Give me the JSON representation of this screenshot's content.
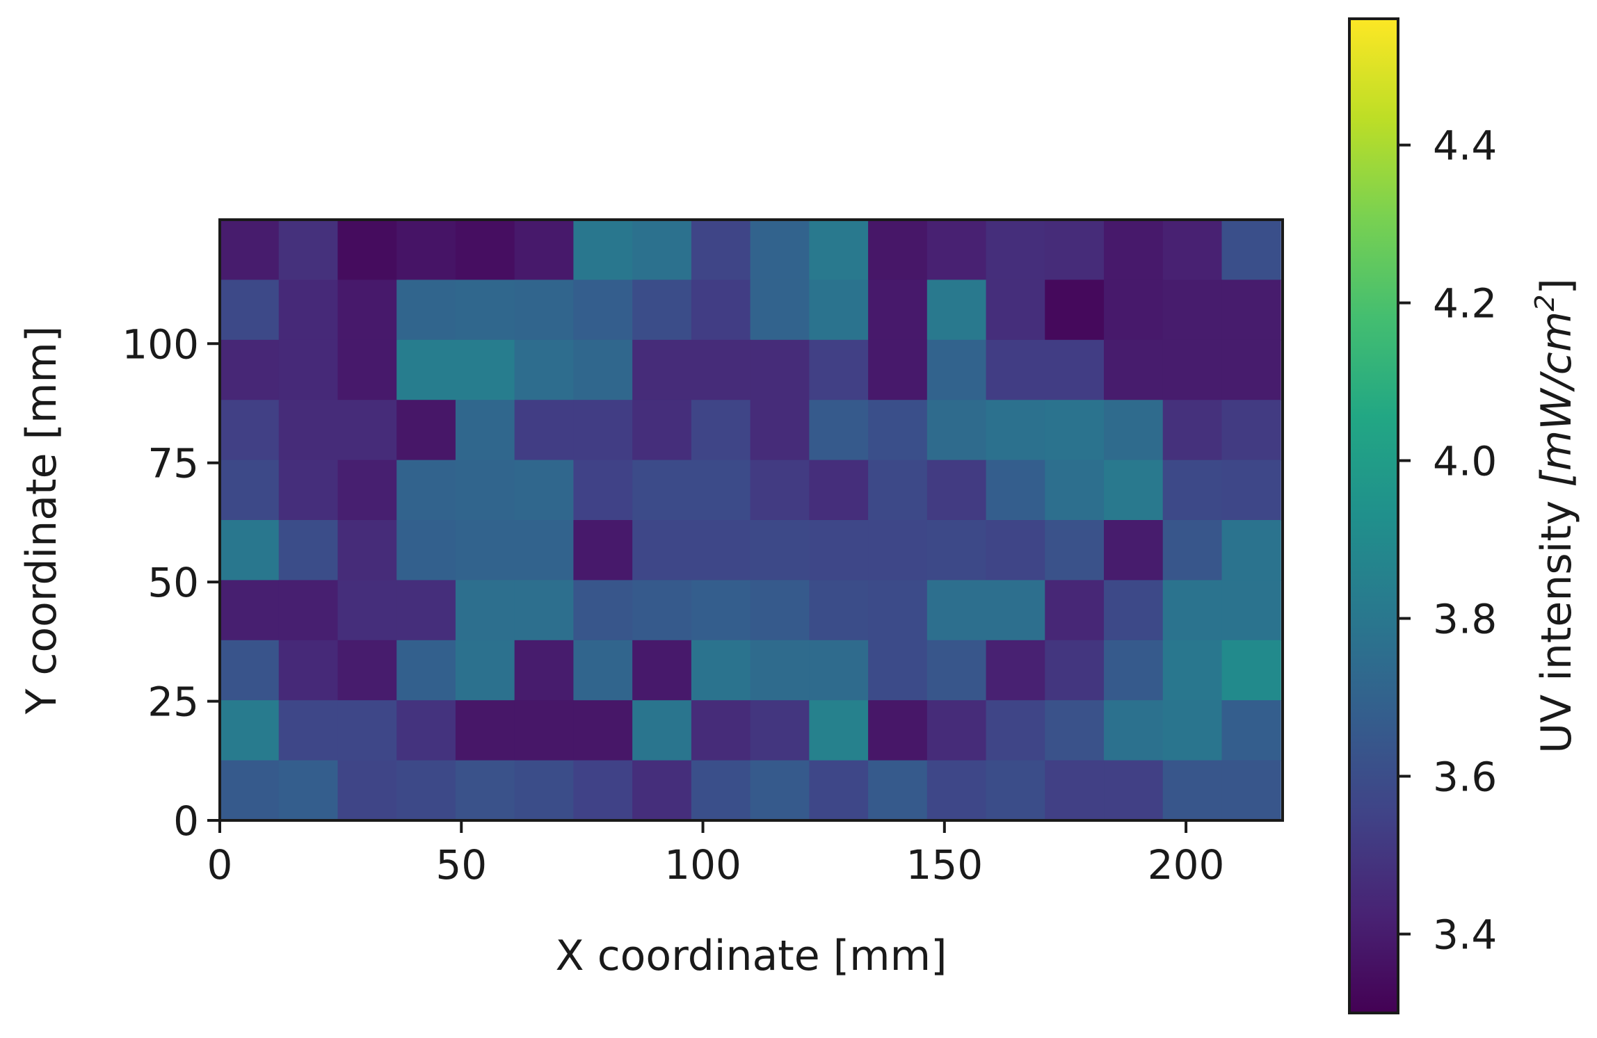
{
  "chart_data": {
    "type": "heatmap",
    "xlabel": "X coordinate [mm]",
    "ylabel": "Y coordinate [mm]",
    "colorbar_label_plain": "UV intensity ",
    "colorbar_label_units": "[mW/cm",
    "colorbar_label_exp": "2",
    "colorbar_label_close": "]",
    "colormap": "viridis",
    "xlim": [
      0,
      220
    ],
    "ylim": [
      0,
      126
    ],
    "xticks": [
      0,
      50,
      100,
      150,
      200
    ],
    "yticks": [
      0,
      25,
      50,
      75,
      100
    ],
    "colorbar_range": [
      3.3,
      4.56
    ],
    "colorbar_ticks": [
      3.4,
      3.6,
      3.8,
      4.0,
      4.2,
      4.4
    ],
    "cell_size_x": 12.2,
    "cell_size_y": 12.6,
    "rows_top_to_bottom": [
      [
        3.4,
        3.48,
        3.34,
        3.37,
        3.35,
        3.39,
        3.8,
        3.77,
        3.56,
        3.7,
        3.81,
        3.38,
        3.42,
        3.47,
        3.46,
        3.39,
        3.42,
        3.61
      ],
      [
        3.58,
        3.45,
        3.39,
        3.71,
        3.72,
        3.71,
        3.68,
        3.6,
        3.53,
        3.7,
        3.78,
        3.39,
        3.81,
        3.47,
        3.33,
        3.39,
        3.4,
        3.4
      ],
      [
        3.44,
        3.45,
        3.39,
        3.83,
        3.83,
        3.75,
        3.72,
        3.46,
        3.46,
        3.46,
        3.54,
        3.39,
        3.7,
        3.53,
        3.53,
        3.4,
        3.4,
        3.4
      ],
      [
        3.54,
        3.46,
        3.46,
        3.38,
        3.72,
        3.53,
        3.53,
        3.47,
        3.56,
        3.46,
        3.66,
        3.61,
        3.74,
        3.77,
        3.78,
        3.74,
        3.48,
        3.52
      ],
      [
        3.58,
        3.47,
        3.41,
        3.7,
        3.71,
        3.72,
        3.55,
        3.59,
        3.59,
        3.52,
        3.47,
        3.58,
        3.52,
        3.68,
        3.76,
        3.81,
        3.58,
        3.57
      ],
      [
        3.8,
        3.6,
        3.46,
        3.69,
        3.7,
        3.7,
        3.39,
        3.57,
        3.57,
        3.58,
        3.57,
        3.57,
        3.58,
        3.56,
        3.62,
        3.4,
        3.64,
        3.78
      ],
      [
        3.41,
        3.41,
        3.47,
        3.47,
        3.76,
        3.76,
        3.64,
        3.66,
        3.68,
        3.66,
        3.6,
        3.59,
        3.76,
        3.76,
        3.44,
        3.58,
        3.78,
        3.78
      ],
      [
        3.63,
        3.45,
        3.4,
        3.69,
        3.77,
        3.4,
        3.71,
        3.39,
        3.78,
        3.74,
        3.74,
        3.59,
        3.64,
        3.42,
        3.5,
        3.66,
        3.8,
        3.9
      ],
      [
        3.82,
        3.57,
        3.57,
        3.49,
        3.38,
        3.38,
        3.38,
        3.79,
        3.46,
        3.5,
        3.85,
        3.38,
        3.46,
        3.56,
        3.62,
        3.77,
        3.79,
        3.68
      ],
      [
        3.66,
        3.68,
        3.56,
        3.58,
        3.62,
        3.6,
        3.55,
        3.47,
        3.61,
        3.66,
        3.57,
        3.66,
        3.57,
        3.6,
        3.54,
        3.54,
        3.64,
        3.64
      ]
    ]
  }
}
